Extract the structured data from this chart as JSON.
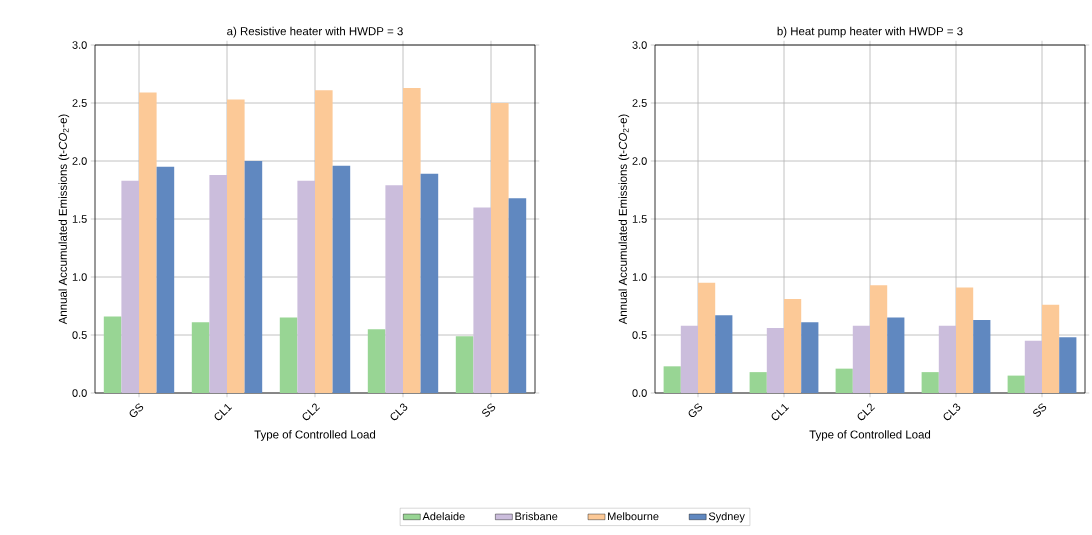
{
  "chart_data": [
    {
      "type": "bar",
      "title": "a) Resistive heater with HWDP = 3",
      "xlabel": "Type of Controlled Load",
      "ylabel": "Annual Accumulated Emissions (t-*CO*$_{2}$-e)",
      "categories": [
        "GS",
        "CL1",
        "CL2",
        "CL3",
        "SS"
      ],
      "series": [
        {
          "color": "#98d594",
          "values": [
            0.66,
            0.61,
            0.65,
            0.55,
            0.49
          ]
        },
        {
          "color": "#cbbddc",
          "values": [
            1.83,
            1.88,
            1.83,
            1.79,
            1.6
          ]
        },
        {
          "color": "#fcc997",
          "values": [
            2.59,
            2.53,
            2.61,
            2.63,
            2.5
          ]
        },
        {
          "color": "#6088c0",
          "values": [
            1.95,
            2.0,
            1.96,
            1.89,
            1.68
          ]
        }
      ],
      "ylim": [
        0,
        3
      ],
      "yticks": [
        {
          "value": 0,
          "label": "0.0"
        },
        {
          "value": 0.5,
          "label": "0.5"
        },
        {
          "value": 1,
          "label": "1.0"
        },
        {
          "value": 1.5,
          "label": "1.5"
        },
        {
          "value": 2,
          "label": "2.0"
        },
        {
          "value": 2.5,
          "label": "2.5"
        },
        {
          "value": 3,
          "label": "3.0"
        }
      ],
      "grid": true
    },
    {
      "type": "bar",
      "title": "b) Heat pump heater with HWDP = 3",
      "xlabel": "Type of Controlled Load",
      "ylabel": "Annual Accumulated Emissions (t-*CO*$_{2}$-e)",
      "categories": [
        "GS",
        "CL1",
        "CL2",
        "CL3",
        "SS"
      ],
      "series": [
        {
          "name": "Adelaide",
          "color": "#98d594",
          "values": [
            0.23,
            0.18,
            0.21,
            0.18,
            0.15
          ]
        },
        {
          "name": "Brisbane",
          "color": "#cbbddc",
          "values": [
            0.58,
            0.56,
            0.58,
            0.58,
            0.45
          ]
        },
        {
          "name": "Melbourne",
          "color": "#fcc997",
          "values": [
            0.95,
            0.81,
            0.93,
            0.91,
            0.76
          ]
        },
        {
          "name": "Sydney",
          "color": "#6088c0",
          "values": [
            0.67,
            0.61,
            0.65,
            0.63,
            0.48
          ]
        }
      ],
      "ylim": [
        0,
        3
      ],
      "yticks": [
        {
          "value": 0,
          "label": "0.0"
        },
        {
          "value": 0.5,
          "label": "0.5"
        },
        {
          "value": 1,
          "label": "1.0"
        },
        {
          "value": 1.5,
          "label": "1.5"
        },
        {
          "value": 2,
          "label": "2.0"
        },
        {
          "value": 2.5,
          "label": "2.5"
        },
        {
          "value": 3,
          "label": "3.0"
        }
      ],
      "grid": true,
      "legend": "bottom"
    }
  ]
}
